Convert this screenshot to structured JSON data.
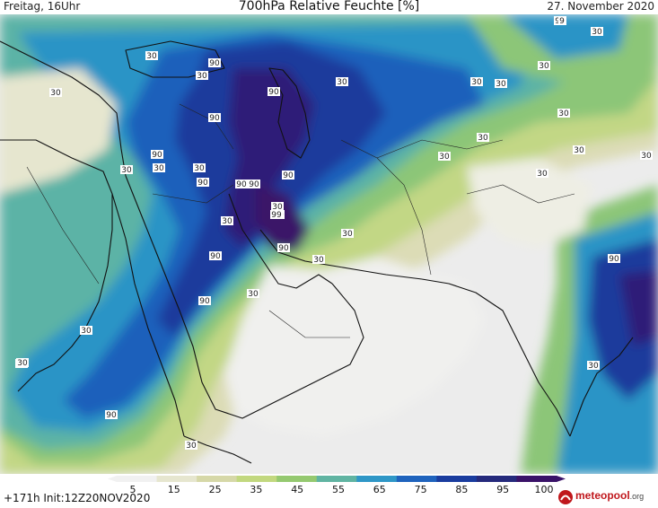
{
  "header": {
    "left": "Freitag, 16Uhr",
    "title": "700hPa Relative Feuchte [%]",
    "right": "27. November 2020"
  },
  "footer": {
    "run": "+171h Init:12Z20NOV2020",
    "logo": "meteopool",
    "logo_domain": ".org"
  },
  "colorbar": {
    "labels": [
      "5",
      "15",
      "25",
      "35",
      "45",
      "55",
      "65",
      "75",
      "85",
      "95",
      "100"
    ],
    "colors": [
      "#f1f1f1",
      "#e6e6cf",
      "#d6d8a8",
      "#c2d87f",
      "#95c970",
      "#60b4a2",
      "#2f97c7",
      "#1f63bd",
      "#1a3c9e",
      "#252a7c",
      "#3a1268"
    ]
  },
  "contour_labels": [
    {
      "text": "90"
    },
    {
      "text": "30"
    },
    {
      "text": "90"
    },
    {
      "text": "30"
    },
    {
      "text": "30"
    },
    {
      "text": "90"
    },
    {
      "text": "30"
    },
    {
      "text": "30"
    },
    {
      "text": "30"
    },
    {
      "text": "30"
    },
    {
      "text": "30"
    },
    {
      "text": "90"
    },
    {
      "text": "30"
    },
    {
      "text": "30"
    },
    {
      "text": "90"
    },
    {
      "text": "30"
    },
    {
      "text": "90"
    },
    {
      "text": "90"
    },
    {
      "text": "90"
    },
    {
      "text": "90"
    },
    {
      "text": "99"
    },
    {
      "text": "30"
    },
    {
      "text": "90"
    },
    {
      "text": "30"
    },
    {
      "text": "30"
    },
    {
      "text": "90"
    },
    {
      "text": "30"
    },
    {
      "text": "90"
    },
    {
      "text": "30"
    },
    {
      "text": "30"
    },
    {
      "text": "30"
    },
    {
      "text": "9"
    },
    {
      "text": "90"
    },
    {
      "text": "90"
    },
    {
      "text": "30"
    },
    {
      "text": "30"
    },
    {
      "text": "30"
    },
    {
      "text": "30"
    },
    {
      "text": "30"
    },
    {
      "text": "30"
    },
    {
      "text": "30"
    },
    {
      "text": "90"
    },
    {
      "text": "30"
    },
    {
      "text": "30"
    }
  ]
}
